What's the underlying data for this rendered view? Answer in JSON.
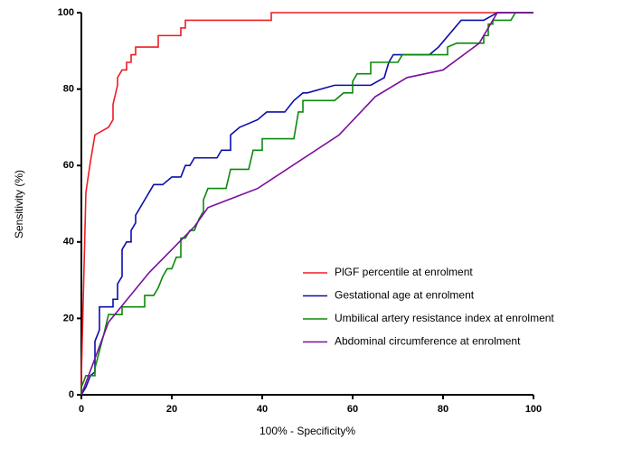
{
  "chart_data": {
    "type": "line",
    "x_label": "100% - Specificity%",
    "y_label": "Sensitivity (%)",
    "xlim": [
      0,
      100
    ],
    "ylim": [
      0,
      100
    ],
    "xticks": [
      0,
      20,
      40,
      60,
      80,
      100
    ],
    "yticks": [
      0,
      20,
      40,
      60,
      80,
      100
    ],
    "legend": "lower right",
    "series": [
      {
        "name": "PlGF percentile at enrolment",
        "color": "#ee1c25",
        "x": [
          0,
          0,
          1,
          2,
          3,
          6,
          7,
          7,
          8,
          8,
          9,
          10,
          10,
          11,
          11,
          12,
          12,
          17,
          17,
          22,
          22,
          23,
          23,
          42,
          42,
          100
        ],
        "values": [
          0,
          5,
          53,
          61,
          68,
          70,
          72,
          76,
          81,
          83,
          85,
          85,
          87,
          87,
          89,
          89,
          91,
          91,
          94,
          94,
          96,
          96,
          98,
          98,
          100,
          100
        ]
      },
      {
        "name": "Gestational age at enrolment",
        "color": "#0a0fa8",
        "x": [
          0,
          1,
          2,
          3,
          3,
          4,
          4,
          7,
          7,
          8,
          8,
          9,
          9,
          10,
          11,
          11,
          12,
          12,
          13,
          14,
          15,
          16,
          18,
          20,
          22,
          23,
          24,
          25,
          30,
          31,
          33,
          33,
          35,
          39,
          41,
          45,
          47,
          49,
          50,
          56,
          64,
          67,
          68,
          69,
          77,
          79,
          84,
          89,
          92,
          100
        ],
        "values": [
          0,
          2,
          5,
          6,
          14,
          17,
          23,
          23,
          25,
          25,
          29,
          31,
          38,
          40,
          40,
          43,
          45,
          47,
          49,
          51,
          53,
          55,
          55,
          57,
          57,
          60,
          60,
          62,
          62,
          64,
          64,
          68,
          70,
          72,
          74,
          74,
          77,
          79,
          79,
          81,
          81,
          83,
          87,
          89,
          89,
          91,
          98,
          98,
          100,
          100
        ]
      },
      {
        "name": "Umbilical artery resistance index at enrolment",
        "color": "#0b8a0b",
        "x": [
          0,
          0,
          1,
          3,
          3,
          5,
          6,
          9,
          9,
          14,
          14,
          16,
          17,
          18,
          19,
          20,
          21,
          22,
          22,
          23,
          24,
          25,
          26,
          27,
          27,
          28,
          32,
          33,
          37,
          38,
          40,
          40,
          47,
          48,
          49,
          49,
          56,
          58,
          60,
          60,
          61,
          64,
          64,
          70,
          71,
          81,
          81,
          83,
          89,
          89,
          90,
          90,
          91,
          91,
          95,
          96,
          100
        ],
        "values": [
          0,
          2,
          5,
          5,
          7,
          16,
          21,
          21,
          23,
          23,
          26,
          26,
          28,
          31,
          33,
          33,
          36,
          36,
          41,
          41,
          43,
          43,
          46,
          48,
          51,
          54,
          54,
          59,
          59,
          64,
          64,
          67,
          67,
          74,
          74,
          77,
          77,
          79,
          79,
          82,
          84,
          84,
          87,
          87,
          89,
          89,
          91,
          92,
          92,
          94,
          94,
          97,
          97,
          98,
          98,
          100,
          100
        ]
      },
      {
        "name": "Abdominal circumference at enrolment",
        "color": "#7b0e9e",
        "x": [
          0,
          6,
          15,
          25,
          28,
          39,
          57,
          65,
          72,
          80,
          88,
          92,
          100
        ],
        "values": [
          0,
          19,
          32,
          44,
          49,
          54,
          68,
          78,
          83,
          85,
          92,
          100,
          100
        ]
      }
    ]
  }
}
